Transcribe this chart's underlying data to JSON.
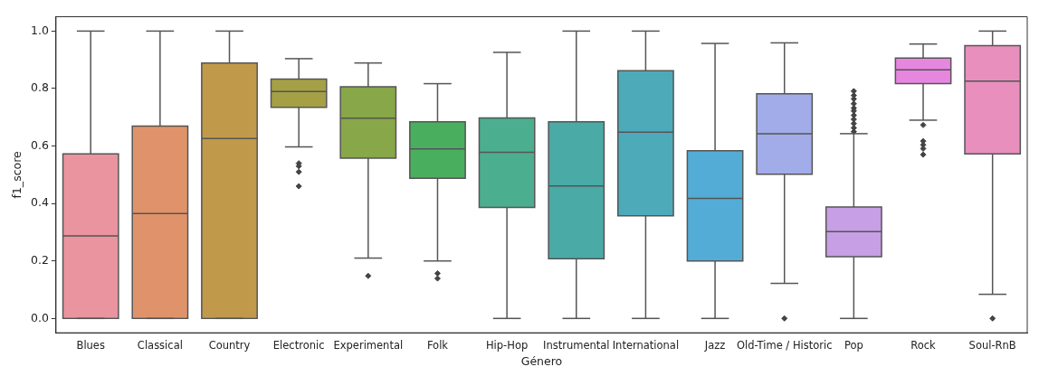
{
  "chart_data": {
    "type": "box",
    "xlabel": "Género",
    "ylabel": "f1_score",
    "categories": [
      "Blues",
      "Classical",
      "Country",
      "Electronic",
      "Experimental",
      "Folk",
      "Hip-Hop",
      "Instrumental",
      "International",
      "Jazz",
      "Old-Time / Historic",
      "Pop",
      "Rock",
      "Soul-RnB"
    ],
    "colors": [
      "#e9949f",
      "#e0936a",
      "#c09a4a",
      "#a5a046",
      "#87a748",
      "#4aae5f",
      "#4bae8f",
      "#4aaaa6",
      "#4daab9",
      "#53acd6",
      "#a1ace8",
      "#c79fe4",
      "#e786df",
      "#e88fbe"
    ],
    "boxes": [
      {
        "low": 0,
        "q1": 0,
        "median": 0.287,
        "q3": 0.573,
        "high": 1
      },
      {
        "low": 0,
        "q1": 0,
        "median": 0.365,
        "q3": 0.669,
        "high": 1
      },
      {
        "low": 0,
        "q1": 0,
        "median": 0.626,
        "q3": 0.889,
        "high": 1
      },
      {
        "low": 0.597,
        "q1": 0.735,
        "median": 0.79,
        "q3": 0.833,
        "high": 0.904,
        "outliers": [
          0.54,
          0.53,
          0.51,
          0.46
        ]
      },
      {
        "low": 0.21,
        "q1": 0.558,
        "median": 0.697,
        "q3": 0.806,
        "high": 0.889,
        "outliers": [
          0.148
        ]
      },
      {
        "low": 0.2,
        "q1": 0.488,
        "median": 0.59,
        "q3": 0.684,
        "high": 0.817,
        "outliers": [
          0.157,
          0.139
        ]
      },
      {
        "low": 0,
        "q1": 0.386,
        "median": 0.578,
        "q3": 0.698,
        "high": 0.926
      },
      {
        "low": 0,
        "q1": 0.208,
        "median": 0.461,
        "q3": 0.684,
        "high": 1
      },
      {
        "low": 0,
        "q1": 0.357,
        "median": 0.648,
        "q3": 0.862,
        "high": 1
      },
      {
        "low": 0,
        "q1": 0.2,
        "median": 0.418,
        "q3": 0.584,
        "high": 0.957
      },
      {
        "low": 0.122,
        "q1": 0.502,
        "median": 0.643,
        "q3": 0.782,
        "high": 0.959,
        "outliers": [
          0
        ]
      },
      {
        "low": 0,
        "q1": 0.215,
        "median": 0.302,
        "q3": 0.388,
        "high": 0.643,
        "outliers": [
          0.791,
          0.776,
          0.764,
          0.747,
          0.732,
          0.722,
          0.707,
          0.693,
          0.678,
          0.663,
          0.65
        ]
      },
      {
        "low": 0.69,
        "q1": 0.817,
        "median": 0.865,
        "q3": 0.906,
        "high": 0.955,
        "outliers": [
          0.673,
          0.617,
          0.604,
          0.591,
          0.57
        ]
      },
      {
        "low": 0.084,
        "q1": 0.573,
        "median": 0.826,
        "q3": 0.949,
        "high": 1,
        "outliers": [
          0
        ]
      }
    ],
    "ylim": [
      -0.05,
      1.05
    ],
    "yticks": [
      {
        "value": 0,
        "label": "0.0"
      },
      {
        "value": 0.2,
        "label": "0.2"
      },
      {
        "value": 0.4,
        "label": "0.4"
      },
      {
        "value": 0.6,
        "label": "0.6"
      },
      {
        "value": 0.8,
        "label": "0.8"
      },
      {
        "value": 1,
        "label": "1.0"
      }
    ],
    "grid": false,
    "legend": false,
    "marker": "diamond"
  }
}
